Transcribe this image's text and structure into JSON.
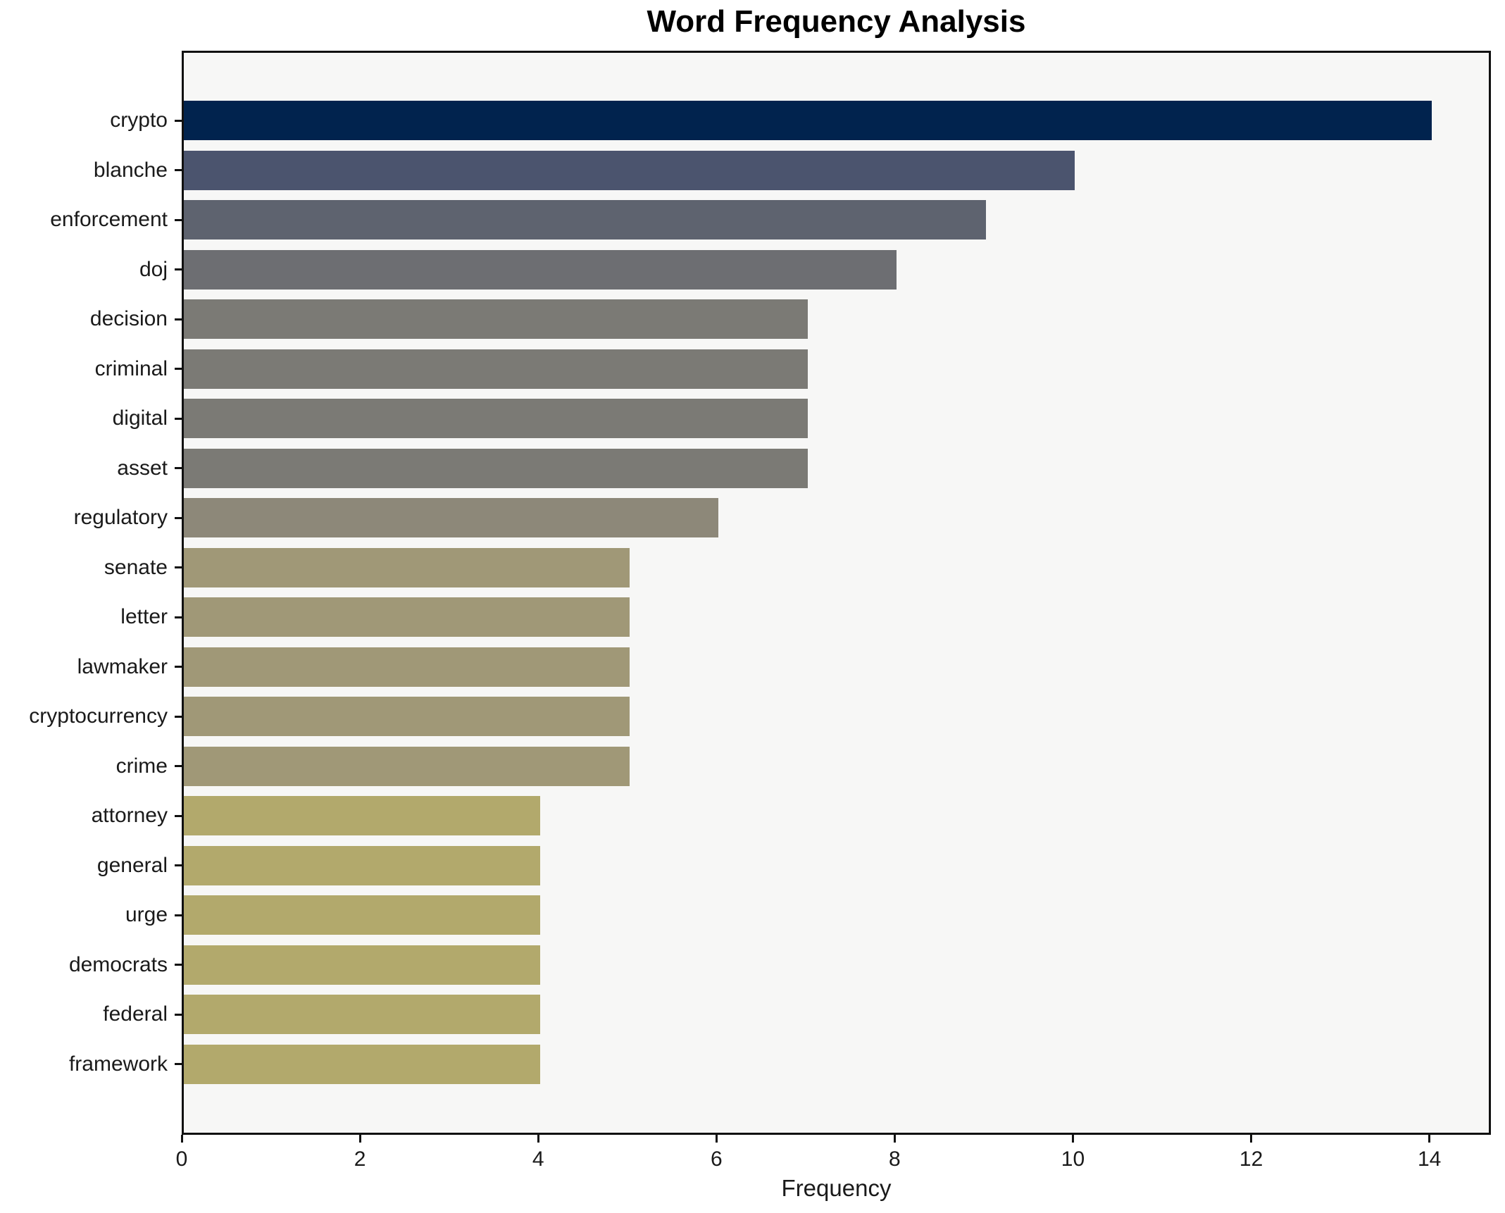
{
  "chart_data": {
    "type": "bar",
    "orientation": "horizontal",
    "title": "Word Frequency Analysis",
    "xlabel": "Frequency",
    "ylabel": "",
    "categories": [
      "crypto",
      "blanche",
      "enforcement",
      "doj",
      "decision",
      "criminal",
      "digital",
      "asset",
      "regulatory",
      "senate",
      "letter",
      "lawmaker",
      "cryptocurrency",
      "crime",
      "attorney",
      "general",
      "urge",
      "democrats",
      "federal",
      "framework"
    ],
    "values": [
      14,
      10,
      9,
      8,
      7,
      7,
      7,
      7,
      6,
      5,
      5,
      5,
      5,
      5,
      4,
      4,
      4,
      4,
      4,
      4
    ],
    "bar_colors": [
      "#01234e",
      "#4b546e",
      "#5e636f",
      "#6d6e72",
      "#7b7a75",
      "#7b7a75",
      "#7b7a75",
      "#7b7a75",
      "#8d8879",
      "#a09877",
      "#a09877",
      "#a09877",
      "#a09877",
      "#a09877",
      "#b2a96c",
      "#b2a96c",
      "#b2a96c",
      "#b2a96c",
      "#b2a96c",
      "#b2a96c"
    ],
    "x_ticks": [
      0,
      2,
      4,
      6,
      8,
      10,
      12,
      14
    ],
    "xlim": [
      0,
      14.69
    ],
    "grid": false,
    "legend_position": "none",
    "colormap": "cividis",
    "plot_background": "#f7f7f6",
    "figure_background": "#ffffff",
    "spine_color": "#111111"
  }
}
